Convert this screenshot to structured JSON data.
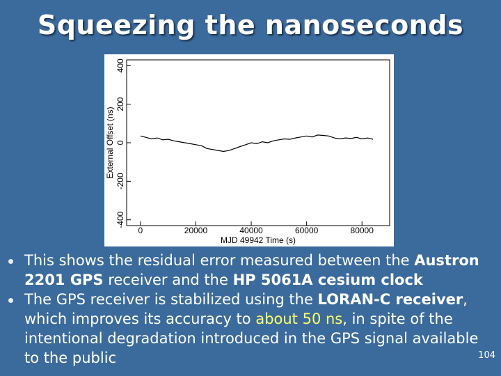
{
  "slide": {
    "title": "Squeezing the nanoseconds",
    "page_number": "104"
  },
  "bullets": [
    {
      "parts": [
        {
          "text": "This shows the residual error measured between the ",
          "style": "normal"
        },
        {
          "text": "Austron 2201 GPS",
          "style": "strong"
        },
        {
          "text": " receiver and the ",
          "style": "normal"
        },
        {
          "text": "HP 5061A cesium clock",
          "style": "strong"
        }
      ]
    },
    {
      "parts": [
        {
          "text": "The GPS receiver is stabilized using the ",
          "style": "normal"
        },
        {
          "text": "LORAN-C receiver",
          "style": "strong"
        },
        {
          "text": ", which improves its accuracy to ",
          "style": "normal"
        },
        {
          "text": "about 50 ns",
          "style": "highlight"
        },
        {
          "text": ", in spite of the intentional degradation introduced in the GPS signal available to the public",
          "style": "normal"
        }
      ]
    }
  ],
  "chart_data": {
    "type": "line",
    "xlabel": "MJD 49942 Time (s)",
    "ylabel": "External Offset (ns)",
    "xlim": [
      -5000,
      90000
    ],
    "ylim": [
      -430,
      430
    ],
    "xticks": [
      0,
      20000,
      40000,
      60000,
      80000
    ],
    "yticks": [
      -400,
      -200,
      0,
      200,
      400
    ],
    "grid": false,
    "color": "#000000",
    "series": [
      {
        "x": [
          0,
          2000,
          4000,
          6000,
          8000,
          10000,
          12000,
          14000,
          16000,
          18000,
          20000,
          22000,
          24000,
          26000,
          28000,
          30000,
          32000,
          34000,
          36000,
          38000,
          40000,
          42000,
          44000,
          46000,
          48000,
          50000,
          52000,
          54000,
          56000,
          58000,
          60000,
          62000,
          64000,
          66000,
          68000,
          70000,
          72000,
          74000,
          76000,
          78000,
          80000,
          82000,
          84000
        ],
        "values": [
          35,
          28,
          20,
          25,
          15,
          18,
          10,
          5,
          0,
          -5,
          -10,
          -15,
          -30,
          -35,
          -40,
          -45,
          -40,
          -30,
          -20,
          -10,
          0,
          -5,
          5,
          0,
          10,
          15,
          20,
          18,
          25,
          30,
          35,
          30,
          40,
          38,
          35,
          25,
          20,
          25,
          22,
          28,
          20,
          25,
          18
        ]
      }
    ]
  }
}
